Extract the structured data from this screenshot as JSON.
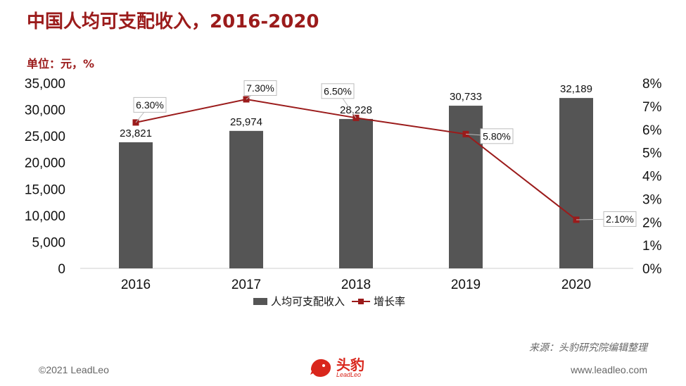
{
  "title": "中国人均可支配收入，2016-2020",
  "unit_label": "单位：元，%",
  "source": "来源：头豹研究院编辑整理",
  "copyright": "©2021 LeadLeo",
  "website": "www.leadleo.com",
  "logo": {
    "cn": "头豹",
    "en": "LeadLeo"
  },
  "colors": {
    "bar": "#555555",
    "line": "#9b1b1b",
    "title": "#9b1b1b"
  },
  "chart_data": {
    "type": "bar",
    "categories": [
      "2016",
      "2017",
      "2018",
      "2019",
      "2020"
    ],
    "series": [
      {
        "name": "人均可支配收入",
        "type": "bar",
        "axis": "left",
        "values": [
          23821,
          25974,
          28228,
          30733,
          32189
        ],
        "labels": [
          "23,821",
          "25,974",
          "28,228",
          "30,733",
          "32,189"
        ]
      },
      {
        "name": "增长率",
        "type": "line",
        "axis": "right",
        "values": [
          6.3,
          7.3,
          6.5,
          5.8,
          2.1
        ],
        "labels": [
          "6.30%",
          "7.30%",
          "6.50%",
          "5.80%",
          "2.10%"
        ]
      }
    ],
    "y_left": {
      "ylim": [
        0,
        35000
      ],
      "ticks": [
        "0",
        "5,000",
        "10,000",
        "15,000",
        "20,000",
        "25,000",
        "30,000",
        "35,000"
      ]
    },
    "y_right": {
      "ylim": [
        0,
        8
      ],
      "ticks": [
        "0%",
        "1%",
        "2%",
        "3%",
        "4%",
        "5%",
        "6%",
        "7%",
        "8%"
      ]
    },
    "grid": false,
    "legend_position": "bottom"
  }
}
